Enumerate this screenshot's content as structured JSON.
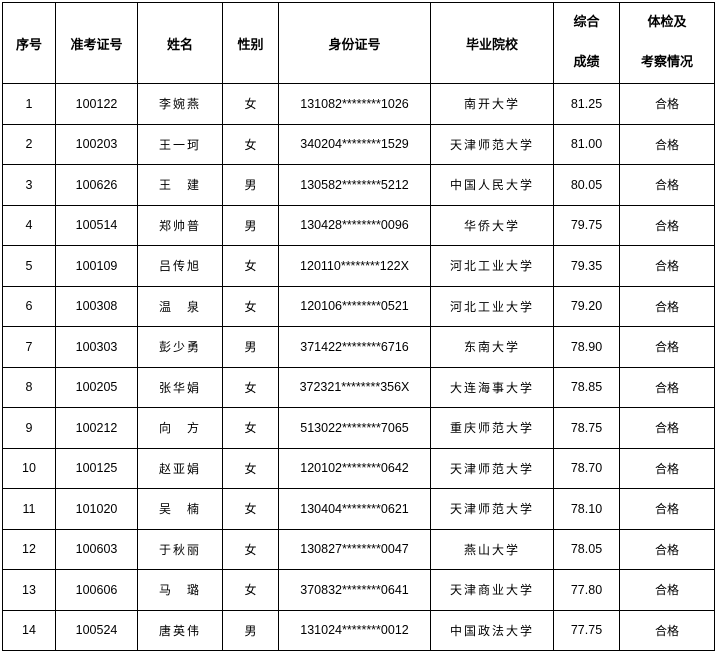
{
  "headers": {
    "no": "序号",
    "exam_id": "准考证号",
    "name": "姓名",
    "gender": "性别",
    "id_card": "身份证号",
    "school": "毕业院校",
    "score_1": "综合",
    "score_2": "成绩",
    "check_1": "体检及",
    "check_2": "考察情况"
  },
  "rows": [
    {
      "no": "1",
      "exam_id": "100122",
      "name": "李婉燕",
      "gender": "女",
      "id_card": "131082********1026",
      "school": "南开大学",
      "score": "81.25",
      "result": "合格"
    },
    {
      "no": "2",
      "exam_id": "100203",
      "name": "王一珂",
      "gender": "女",
      "id_card": "340204********1529",
      "school": "天津师范大学",
      "score": "81.00",
      "result": "合格"
    },
    {
      "no": "3",
      "exam_id": "100626",
      "name": "王　建",
      "gender": "男",
      "id_card": "130582********5212",
      "school": "中国人民大学",
      "score": "80.05",
      "result": "合格"
    },
    {
      "no": "4",
      "exam_id": "100514",
      "name": "郑帅普",
      "gender": "男",
      "id_card": "130428********0096",
      "school": "华侨大学",
      "score": "79.75",
      "result": "合格"
    },
    {
      "no": "5",
      "exam_id": "100109",
      "name": "吕传旭",
      "gender": "女",
      "id_card": "120110********122X",
      "school": "河北工业大学",
      "score": "79.35",
      "result": "合格"
    },
    {
      "no": "6",
      "exam_id": "100308",
      "name": "温　泉",
      "gender": "女",
      "id_card": "120106********0521",
      "school": "河北工业大学",
      "score": "79.20",
      "result": "合格"
    },
    {
      "no": "7",
      "exam_id": "100303",
      "name": "彭少勇",
      "gender": "男",
      "id_card": "371422********6716",
      "school": "东南大学",
      "score": "78.90",
      "result": "合格"
    },
    {
      "no": "8",
      "exam_id": "100205",
      "name": "张华娟",
      "gender": "女",
      "id_card": "372321********356X",
      "school": "大连海事大学",
      "score": "78.85",
      "result": "合格"
    },
    {
      "no": "9",
      "exam_id": "100212",
      "name": "向　方",
      "gender": "女",
      "id_card": "513022********7065",
      "school": "重庆师范大学",
      "score": "78.75",
      "result": "合格"
    },
    {
      "no": "10",
      "exam_id": "100125",
      "name": "赵亚娟",
      "gender": "女",
      "id_card": "120102********0642",
      "school": "天津师范大学",
      "score": "78.70",
      "result": "合格"
    },
    {
      "no": "11",
      "exam_id": "101020",
      "name": "吴　楠",
      "gender": "女",
      "id_card": "130404********0621",
      "school": "天津师范大学",
      "score": "78.10",
      "result": "合格"
    },
    {
      "no": "12",
      "exam_id": "100603",
      "name": "于秋丽",
      "gender": "女",
      "id_card": "130827********0047",
      "school": "燕山大学",
      "score": "78.05",
      "result": "合格"
    },
    {
      "no": "13",
      "exam_id": "100606",
      "name": "马　璐",
      "gender": "女",
      "id_card": "370832********0641",
      "school": "天津商业大学",
      "score": "77.80",
      "result": "合格"
    },
    {
      "no": "14",
      "exam_id": "100524",
      "name": "唐英伟",
      "gender": "男",
      "id_card": "131024********0012",
      "school": "中国政法大学",
      "score": "77.75",
      "result": "合格"
    }
  ]
}
